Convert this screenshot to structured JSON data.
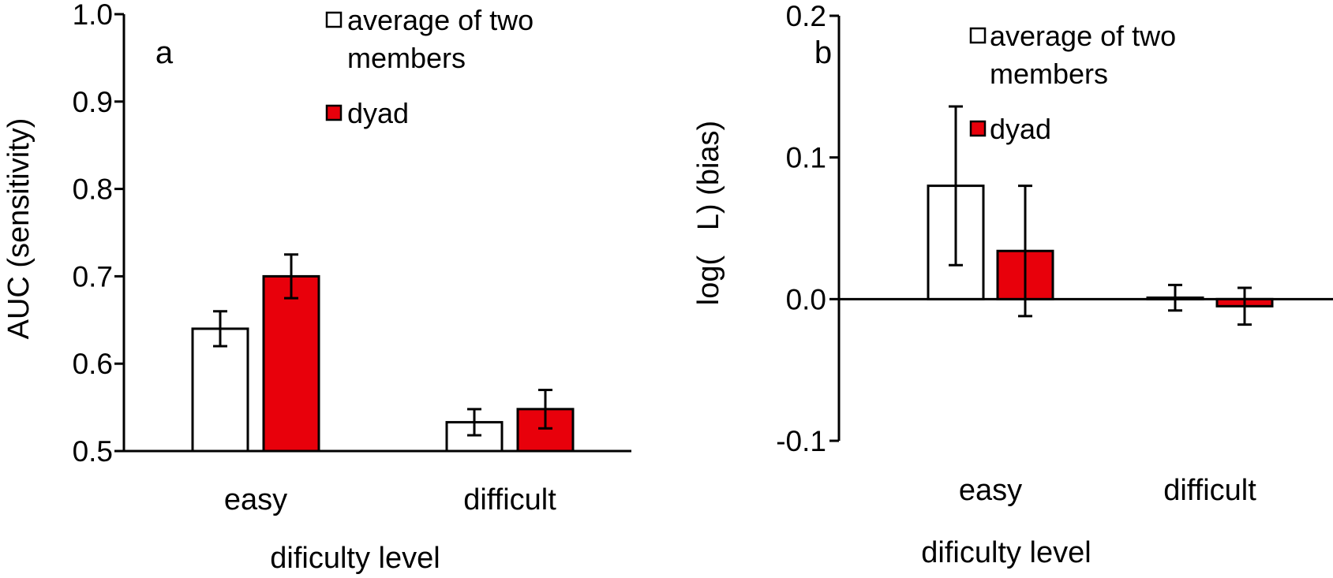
{
  "colors": {
    "series_avg_fill": "#ffffff",
    "series_dyad_fill": "#e8000b",
    "axis": "#000000"
  },
  "chart_data": [
    {
      "panel_label": "a",
      "type": "bar",
      "categories": [
        "easy",
        "difficult"
      ],
      "xlabel": "dificulty level",
      "ylabel": "AUC (sensitivity)",
      "ylim": [
        0.5,
        1.0
      ],
      "yticks": [
        "0.5",
        "0.6",
        "0.7",
        "0.8",
        "0.9",
        "1.0"
      ],
      "legend_position": "top-right",
      "series": [
        {
          "name": "average of two members",
          "values": [
            0.64,
            0.533
          ],
          "errors": [
            0.02,
            0.015
          ]
        },
        {
          "name": "dyad",
          "values": [
            0.7,
            0.548
          ],
          "errors": [
            0.025,
            0.022
          ]
        }
      ]
    },
    {
      "panel_label": "b",
      "type": "bar",
      "categories": [
        "easy",
        "difficult"
      ],
      "xlabel": "dificulty level",
      "ylabel": "log(   L) (bias)",
      "ylim": [
        -0.1,
        0.2
      ],
      "yticks": [
        "-0.1",
        "0.0",
        "0.1",
        "0.2"
      ],
      "legend_position": "top-right",
      "series": [
        {
          "name": "average of two members",
          "values": [
            0.08,
            0.001
          ],
          "errors": [
            0.056,
            0.009
          ]
        },
        {
          "name": "dyad",
          "values": [
            0.034,
            -0.005
          ],
          "errors": [
            0.046,
            0.013
          ]
        }
      ]
    }
  ]
}
